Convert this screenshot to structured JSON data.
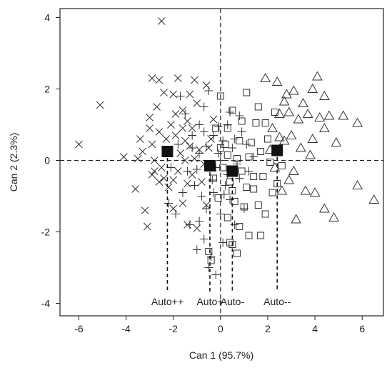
{
  "chart_data": {
    "type": "scatter",
    "title": "",
    "xlabel": "Can 1 (95.7%)",
    "ylabel": "Can 2 (2.3%)",
    "xlim": [
      -6.8,
      6.9
    ],
    "ylim": [
      -4.35,
      4.25
    ],
    "xticks": [
      -6,
      -4,
      -2,
      0,
      2,
      4,
      6
    ],
    "yticks": [
      -4,
      -2,
      0,
      2,
      4
    ],
    "grid": false,
    "reference_lines": {
      "x": 0,
      "y": 0,
      "style": "dashed"
    },
    "centroids": [
      {
        "label": "Auto++",
        "x": -2.25,
        "y": 0.25
      },
      {
        "label": "Auto+",
        "x": -0.45,
        "y": -0.15
      },
      {
        "label": "Auto-",
        "x": 0.5,
        "y": -0.3
      },
      {
        "label": "Auto--",
        "x": 2.4,
        "y": 0.28
      }
    ],
    "series": [
      {
        "marker": "x",
        "points": [
          [
            -2.5,
            3.9
          ],
          [
            -6.0,
            0.45
          ],
          [
            -5.1,
            1.55
          ],
          [
            -4.1,
            0.1
          ],
          [
            -3.6,
            -0.8
          ],
          [
            -3.2,
            -1.4
          ],
          [
            -3.1,
            -1.85
          ],
          [
            -2.9,
            -0.4
          ],
          [
            -3.4,
            0.6
          ],
          [
            -3.0,
            1.2
          ],
          [
            -2.9,
            2.3
          ],
          [
            -2.6,
            2.25
          ],
          [
            -1.8,
            2.3
          ],
          [
            -1.1,
            2.25
          ],
          [
            -2.7,
            1.5
          ],
          [
            -3.3,
            0.25
          ],
          [
            -2.8,
            0.0
          ],
          [
            -2.5,
            -0.2
          ],
          [
            -2.4,
            -0.5
          ],
          [
            -2.2,
            -0.75
          ],
          [
            -2.0,
            -0.55
          ],
          [
            -1.8,
            -0.3
          ],
          [
            -1.5,
            0.0
          ],
          [
            -1.3,
            0.4
          ],
          [
            -2.6,
            0.8
          ],
          [
            -2.3,
            0.6
          ],
          [
            -2.1,
            1.0
          ],
          [
            -1.9,
            0.7
          ],
          [
            -1.6,
            0.9
          ],
          [
            -1.4,
            1.1
          ],
          [
            -1.9,
            1.3
          ],
          [
            -2.4,
            1.9
          ],
          [
            -2.0,
            1.85
          ],
          [
            -1.6,
            1.4
          ],
          [
            -1.0,
            1.6
          ],
          [
            -1.2,
            0.9
          ],
          [
            -0.9,
            0.3
          ],
          [
            -0.7,
            -0.1
          ],
          [
            -1.2,
            -0.4
          ],
          [
            -1.4,
            -0.65
          ],
          [
            -0.8,
            -0.6
          ],
          [
            -0.5,
            0.35
          ],
          [
            -1.6,
            -1.2
          ],
          [
            -2.0,
            -1.35
          ],
          [
            -1.4,
            -1.8
          ],
          [
            -1.0,
            -1.9
          ],
          [
            -0.6,
            -1.25
          ],
          [
            -2.8,
            -0.3
          ],
          [
            -3.0,
            0.9
          ],
          [
            -3.5,
            0.05
          ],
          [
            -2.2,
            0.3
          ],
          [
            -1.7,
            0.2
          ],
          [
            -1.1,
            0.05
          ],
          [
            -0.4,
            0.6
          ],
          [
            -0.3,
            1.15
          ],
          [
            -1.3,
            1.85
          ],
          [
            -2.6,
            -0.6
          ],
          [
            -2.9,
            0.45
          ],
          [
            -0.6,
            2.1
          ],
          [
            -1.5,
            0.55
          ]
        ]
      },
      {
        "marker": "plus",
        "points": [
          [
            -1.7,
            1.8
          ],
          [
            -1.5,
            1.3
          ],
          [
            -1.2,
            0.7
          ],
          [
            -0.9,
            1.0
          ],
          [
            -0.7,
            1.5
          ],
          [
            -0.5,
            1.95
          ],
          [
            -0.3,
            0.7
          ],
          [
            -0.1,
            0.2
          ],
          [
            0.1,
            0.55
          ],
          [
            0.3,
            1.0
          ],
          [
            0.5,
            0.35
          ],
          [
            0.7,
            -0.1
          ],
          [
            0.9,
            0.8
          ],
          [
            1.1,
            0.45
          ],
          [
            -1.4,
            -0.3
          ],
          [
            -1.1,
            -0.7
          ],
          [
            -0.8,
            -1.0
          ],
          [
            -0.6,
            -1.35
          ],
          [
            -0.3,
            -0.9
          ],
          [
            0.0,
            -1.5
          ],
          [
            0.2,
            -0.7
          ],
          [
            0.4,
            -1.1
          ],
          [
            0.6,
            -1.8
          ],
          [
            0.8,
            -0.5
          ],
          [
            -1.6,
            -0.9
          ],
          [
            -1.9,
            -1.5
          ],
          [
            -1.3,
            -1.8
          ],
          [
            -0.9,
            -1.7
          ],
          [
            -1.0,
            -2.5
          ],
          [
            -0.7,
            -2.2
          ],
          [
            -0.4,
            -2.7
          ],
          [
            -0.2,
            -3.2
          ],
          [
            0.1,
            -2.3
          ],
          [
            -0.5,
            -3.0
          ],
          [
            -0.9,
            0.2
          ],
          [
            -0.6,
            0.4
          ],
          [
            -0.2,
            -0.2
          ],
          [
            0.0,
            0.0
          ],
          [
            0.3,
            -0.4
          ],
          [
            1.2,
            -0.3
          ],
          [
            1.4,
            0.1
          ],
          [
            -2.2,
            -1.2
          ],
          [
            -2.1,
            -0.2
          ],
          [
            -1.8,
            0.45
          ],
          [
            -0.1,
            0.95
          ],
          [
            0.4,
            1.35
          ],
          [
            0.6,
            0.6
          ],
          [
            -1.0,
            -0.25
          ],
          [
            -0.35,
            -0.55
          ],
          [
            0.15,
            -0.95
          ],
          [
            1.0,
            -1.35
          ],
          [
            -1.2,
            0.35
          ],
          [
            0.8,
            1.25
          ],
          [
            -0.7,
            0.8
          ]
        ]
      },
      {
        "marker": "square",
        "points": [
          [
            0.0,
            1.8
          ],
          [
            0.5,
            1.4
          ],
          [
            1.1,
            1.9
          ],
          [
            1.6,
            1.5
          ],
          [
            1.9,
            1.05
          ],
          [
            2.3,
            1.35
          ],
          [
            -0.2,
            0.9
          ],
          [
            0.3,
            0.9
          ],
          [
            0.8,
            0.55
          ],
          [
            1.3,
            0.5
          ],
          [
            1.7,
            0.25
          ],
          [
            2.1,
            -0.05
          ],
          [
            0.1,
            -0.2
          ],
          [
            0.4,
            -0.6
          ],
          [
            0.9,
            -0.3
          ],
          [
            1.4,
            -0.8
          ],
          [
            1.8,
            -0.45
          ],
          [
            2.2,
            -0.9
          ],
          [
            -0.3,
            -0.5
          ],
          [
            0.6,
            -1.15
          ],
          [
            1.0,
            -1.3
          ],
          [
            1.6,
            -1.25
          ],
          [
            2.4,
            -0.65
          ],
          [
            0.3,
            -1.6
          ],
          [
            0.8,
            -1.85
          ],
          [
            1.2,
            -2.1
          ],
          [
            1.7,
            -2.1
          ],
          [
            0.5,
            -2.35
          ],
          [
            0.7,
            -2.6
          ],
          [
            0.4,
            -2.3
          ],
          [
            -0.5,
            -2.55
          ],
          [
            -0.4,
            -2.8
          ],
          [
            0.2,
            0.45
          ],
          [
            1.5,
            1.05
          ],
          [
            0.9,
            1.1
          ],
          [
            2.0,
            0.6
          ],
          [
            0.3,
            0.15
          ],
          [
            0.7,
            0.05
          ],
          [
            1.2,
            0.1
          ],
          [
            -0.1,
            -1.05
          ],
          [
            1.9,
            -1.5
          ],
          [
            2.6,
            -0.15
          ],
          [
            1.4,
            -0.45
          ],
          [
            0.0,
            0.35
          ],
          [
            1.1,
            -0.75
          ],
          [
            0.5,
            -0.85
          ]
        ]
      },
      {
        "marker": "triangle",
        "points": [
          [
            1.9,
            2.3
          ],
          [
            2.4,
            2.2
          ],
          [
            2.7,
            1.65
          ],
          [
            3.1,
            1.95
          ],
          [
            3.5,
            1.6
          ],
          [
            3.9,
            2.0
          ],
          [
            4.1,
            2.35
          ],
          [
            4.4,
            1.8
          ],
          [
            4.6,
            1.25
          ],
          [
            4.2,
            1.2
          ],
          [
            3.7,
            1.3
          ],
          [
            3.3,
            1.15
          ],
          [
            2.9,
            1.35
          ],
          [
            2.5,
            1.3
          ],
          [
            2.2,
            0.9
          ],
          [
            2.7,
            0.55
          ],
          [
            3.0,
            0.7
          ],
          [
            3.4,
            0.35
          ],
          [
            3.8,
            0.15
          ],
          [
            4.4,
            0.9
          ],
          [
            5.2,
            1.25
          ],
          [
            5.8,
            1.05
          ],
          [
            3.1,
            -0.3
          ],
          [
            3.6,
            -0.85
          ],
          [
            4.0,
            -0.9
          ],
          [
            4.4,
            -1.35
          ],
          [
            4.8,
            -1.6
          ],
          [
            5.8,
            -0.7
          ],
          [
            6.5,
            -1.1
          ],
          [
            2.6,
            -0.85
          ],
          [
            2.9,
            -0.55
          ],
          [
            2.3,
            -0.2
          ],
          [
            3.2,
            -1.65
          ],
          [
            2.1,
            0.3
          ],
          [
            4.9,
            0.5
          ],
          [
            3.9,
            0.6
          ],
          [
            2.8,
            1.85
          ],
          [
            2.5,
            0.65
          ]
        ]
      }
    ]
  }
}
